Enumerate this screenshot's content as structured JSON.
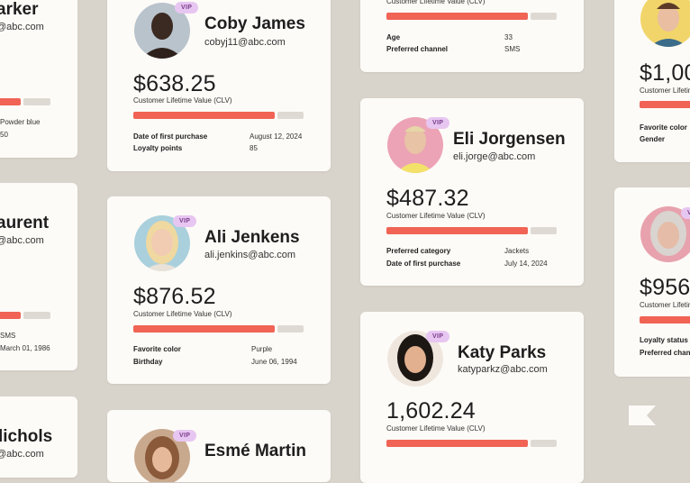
{
  "vip_label": "VIP",
  "clv_label": "Customer Lifetime Value (CLV)",
  "cards": {
    "parker": {
      "name": "arker",
      "email": "@abc.com",
      "rows": [
        {
          "label": "",
          "value": "Powder blue"
        },
        {
          "label": "",
          "value": "50"
        }
      ]
    },
    "coby": {
      "name": "Coby James",
      "email": "cobyj11@abc.com",
      "amount": "$638.25",
      "rows": [
        {
          "label": "Date of first purchase",
          "value": "August 12, 2024"
        },
        {
          "label": "Loyalty points",
          "value": "85"
        }
      ]
    },
    "top_center": {
      "rows": [
        {
          "label": "Age",
          "value": "33"
        },
        {
          "label": "Preferred channel",
          "value": "SMS"
        }
      ]
    },
    "right_top": {
      "amount": "$1,00",
      "rows": [
        {
          "label": "Favorite color",
          "value": ""
        },
        {
          "label": "Gender",
          "value": ""
        }
      ]
    },
    "eli": {
      "name": "Eli Jorgensen",
      "email": "eli.jorge@abc.com",
      "amount": "$487.32",
      "rows": [
        {
          "label": "Preferred category",
          "value": "Jackets"
        },
        {
          "label": "Date of first purchase",
          "value": "July 14, 2024"
        }
      ]
    },
    "laurent": {
      "name": "aurent",
      "email": "@abc.com",
      "rows": [
        {
          "label": "",
          "value": "SMS"
        },
        {
          "label": "",
          "value": "March 01, 1986"
        }
      ]
    },
    "ali": {
      "name": "Ali Jenkens",
      "email": "ali.jenkins@abc.com",
      "amount": "$876.52",
      "rows": [
        {
          "label": "Favorite color",
          "value": "Purple"
        },
        {
          "label": "Birthday",
          "value": "June 06, 1994"
        }
      ]
    },
    "right_mid": {
      "amount": "$956",
      "rows": [
        {
          "label": "Loyalty status",
          "value": ""
        },
        {
          "label": "Preferred chan",
          "value": ""
        }
      ]
    },
    "katy": {
      "name": "Katy Parks",
      "email": "katyparkz@abc.com",
      "amount": "1,602.24",
      "rows": []
    },
    "nichols": {
      "name": "lichols",
      "email": "@abc.com"
    },
    "esme": {
      "name": "Esmé Martin"
    }
  },
  "colors": {
    "background": "#d8d3cb",
    "card": "#fdfbf7",
    "accent": "#f06355",
    "vip_bg": "#e7c6f1"
  },
  "icons": {
    "flag": "flag-icon"
  }
}
